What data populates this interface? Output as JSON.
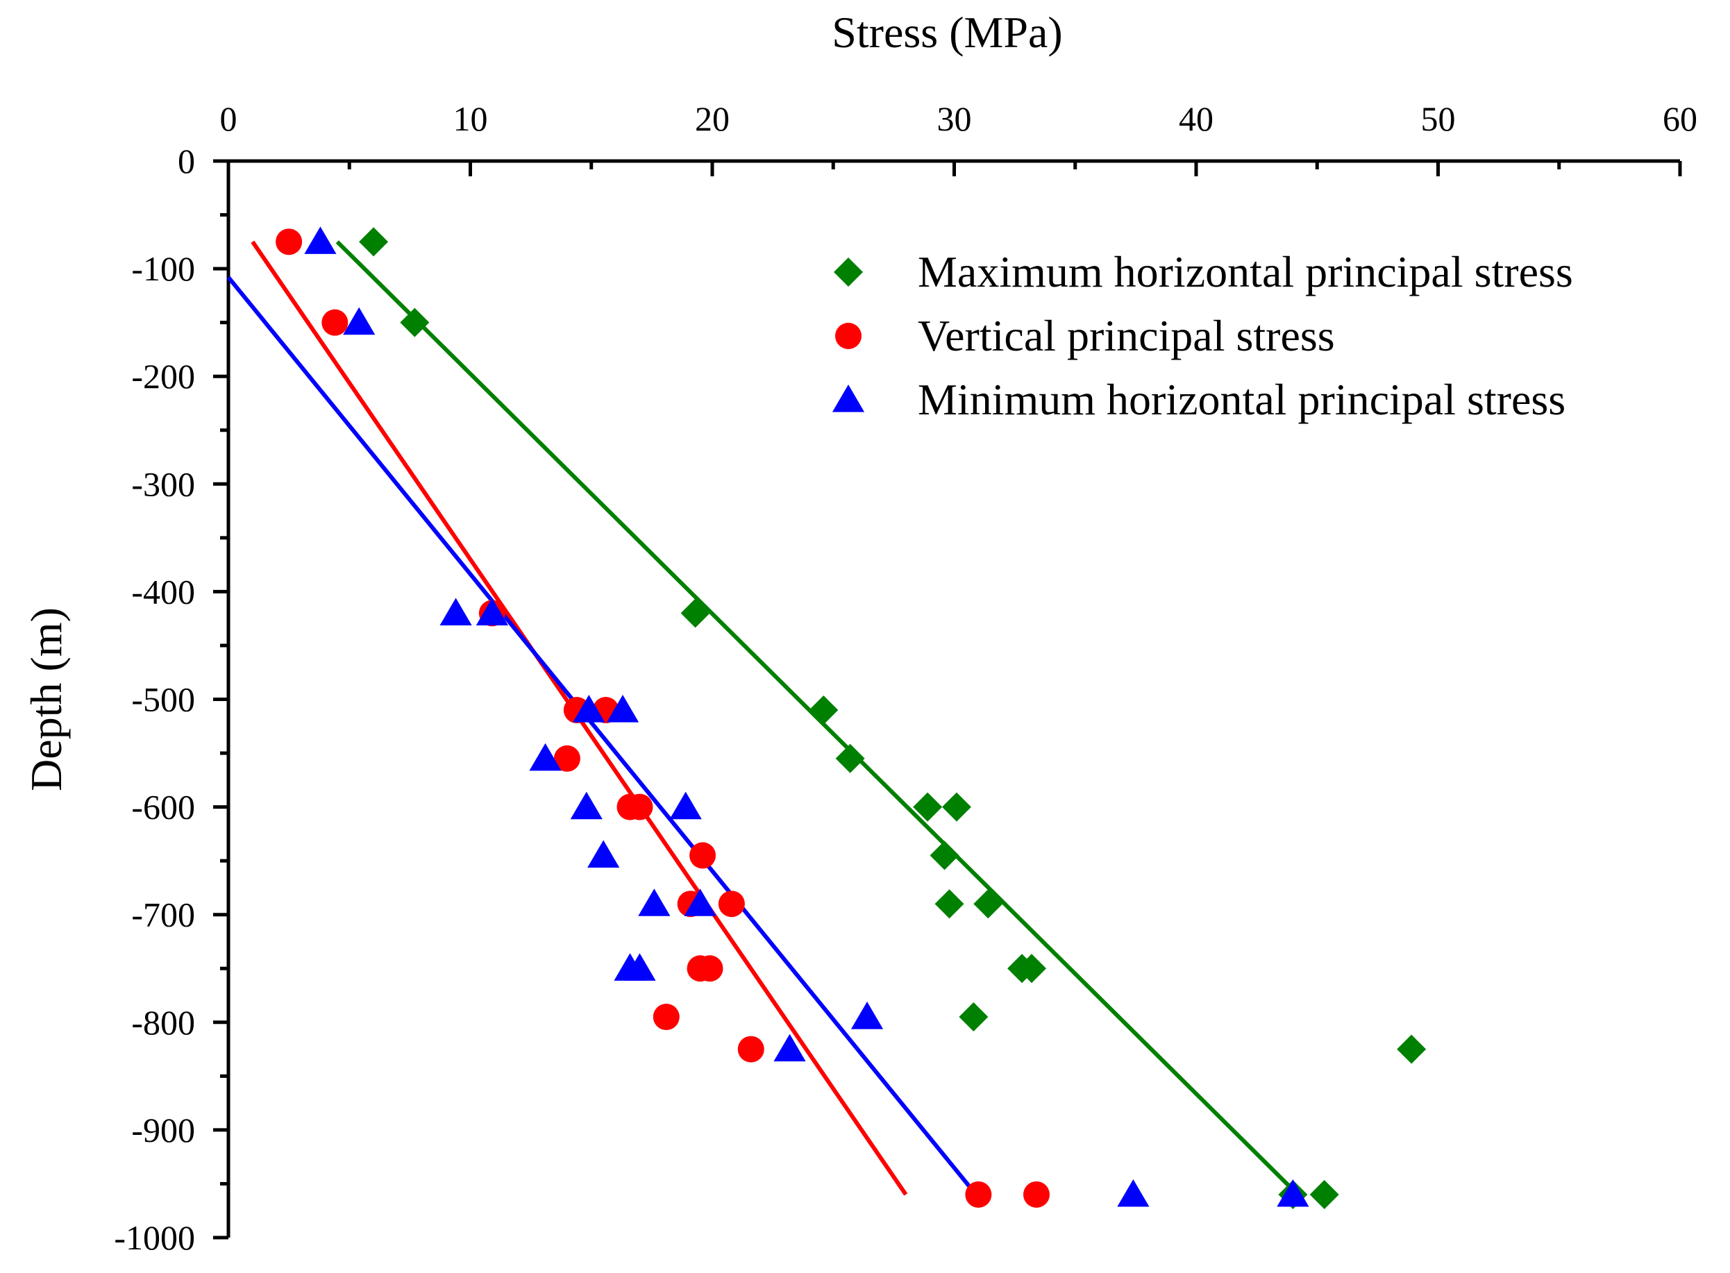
{
  "chart_data": {
    "type": "scatter",
    "title": "",
    "xlabel": "Stress (MPa)",
    "ylabel": "Depth (m)",
    "xlim": [
      0,
      60
    ],
    "ylim": [
      -1000,
      0
    ],
    "x_ticks": [
      "0",
      "10",
      "20",
      "30",
      "40",
      "50",
      "60"
    ],
    "y_ticks": [
      "0",
      "-100",
      "-200",
      "-300",
      "-400",
      "-500",
      "-600",
      "-700",
      "-800",
      "-900",
      "-1000"
    ],
    "x_axis_position": "top",
    "grid": false,
    "legend_position": "top-right",
    "series": [
      {
        "name": "Maximum horizontal principal stress",
        "marker": "diamond",
        "color": "#008000",
        "points": [
          [
            6.0,
            -75
          ],
          [
            7.7,
            -150
          ],
          [
            19.3,
            -420
          ],
          [
            24.6,
            -510
          ],
          [
            25.7,
            -555
          ],
          [
            28.9,
            -600
          ],
          [
            30.1,
            -600
          ],
          [
            29.6,
            -645
          ],
          [
            29.8,
            -690
          ],
          [
            31.4,
            -690
          ],
          [
            32.8,
            -750
          ],
          [
            33.2,
            -750
          ],
          [
            30.8,
            -795
          ],
          [
            48.9,
            -825
          ],
          [
            44.0,
            -960
          ],
          [
            45.3,
            -960
          ]
        ],
        "fit": [
          [
            4.5,
            -75
          ],
          [
            44.2,
            -960
          ]
        ]
      },
      {
        "name": "Vertical principal stress",
        "marker": "circle",
        "color": "#ff0000",
        "points": [
          [
            2.5,
            -75
          ],
          [
            4.4,
            -150
          ],
          [
            10.9,
            -420
          ],
          [
            14.4,
            -510
          ],
          [
            15.6,
            -510
          ],
          [
            14.0,
            -555
          ],
          [
            16.6,
            -600
          ],
          [
            17.0,
            -600
          ],
          [
            19.6,
            -645
          ],
          [
            19.1,
            -690
          ],
          [
            20.8,
            -690
          ],
          [
            19.5,
            -750
          ],
          [
            19.9,
            -750
          ],
          [
            18.1,
            -795
          ],
          [
            21.6,
            -825
          ],
          [
            31.0,
            -960
          ],
          [
            33.4,
            -960
          ]
        ],
        "fit": [
          [
            1.0,
            -75
          ],
          [
            28.0,
            -960
          ]
        ]
      },
      {
        "name": "Minimum horizontal principal stress",
        "marker": "triangle",
        "color": "#0000ff",
        "points": [
          [
            3.8,
            -75
          ],
          [
            5.4,
            -150
          ],
          [
            9.4,
            -420
          ],
          [
            10.9,
            -420
          ],
          [
            14.9,
            -510
          ],
          [
            16.3,
            -510
          ],
          [
            13.1,
            -555
          ],
          [
            14.8,
            -600
          ],
          [
            18.9,
            -600
          ],
          [
            15.5,
            -645
          ],
          [
            17.6,
            -690
          ],
          [
            19.5,
            -690
          ],
          [
            16.6,
            -750
          ],
          [
            17.0,
            -750
          ],
          [
            26.4,
            -795
          ],
          [
            23.2,
            -825
          ],
          [
            37.4,
            -960
          ],
          [
            44.0,
            -960
          ]
        ],
        "fit": [
          [
            0.0,
            -108
          ],
          [
            30.9,
            -960
          ]
        ]
      }
    ]
  }
}
